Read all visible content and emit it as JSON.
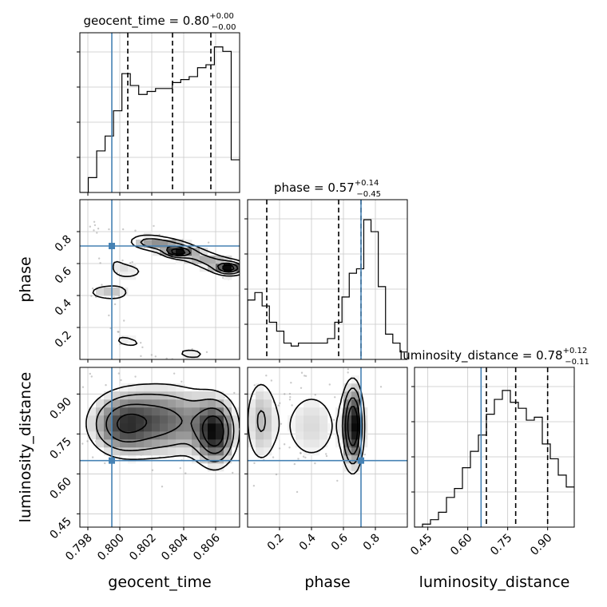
{
  "chart_data": {
    "type": "corner",
    "truth_color": "#4682b4",
    "parameters": [
      {
        "name": "geocent_time",
        "axis_label": "geocent_time",
        "range": [
          0.7975,
          0.8075
        ],
        "ticks": [
          "0.798",
          "0.800",
          "0.802",
          "0.804",
          "0.806"
        ],
        "tick_values": [
          0.798,
          0.8,
          0.802,
          0.804,
          0.806
        ],
        "truth": 0.7995,
        "title": {
          "label": "geocent_time = 0.80",
          "plus": "+0.00",
          "minus": "−0.00"
        },
        "quantiles": [
          0.8005,
          0.8033,
          0.8057
        ],
        "histogram": [
          0,
          0.1,
          0.28,
          0.38,
          0.55,
          0.8,
          0.72,
          0.66,
          0.68,
          0.7,
          0.7,
          0.74,
          0.76,
          0.78,
          0.84,
          0.86,
          0.98,
          0.95,
          0.22
        ]
      },
      {
        "name": "phase",
        "axis_label": "phase",
        "range": [
          0.0,
          1.0
        ],
        "ticks": [
          "0.2",
          "0.4",
          "0.6",
          "0.8"
        ],
        "tick_values": [
          0.2,
          0.4,
          0.6,
          0.8
        ],
        "truth": 0.71,
        "title": {
          "label": "phase = 0.57",
          "plus": "+0.14",
          "minus": "−0.45"
        },
        "quantiles": [
          0.12,
          0.57,
          0.71
        ],
        "histogram": [
          0.4,
          0.45,
          0.36,
          0.25,
          0.19,
          0.11,
          0.09,
          0.11,
          0.11,
          0.11,
          0.11,
          0.14,
          0.25,
          0.42,
          0.58,
          0.61,
          0.94,
          0.86,
          0.49,
          0.17,
          0.11,
          0.05
        ]
      },
      {
        "name": "luminosity_distance",
        "axis_label": "luminosity_distance",
        "range": [
          0.4,
          1.0
        ],
        "ticks": [
          "0.45",
          "0.60",
          "0.75",
          "0.90"
        ],
        "tick_values": [
          0.45,
          0.6,
          0.75,
          0.9
        ],
        "truth": 0.65,
        "title": {
          "label": "luminosity_distance = 0.78",
          "plus": "+0.12",
          "minus": "−0.11"
        },
        "quantiles": [
          0.67,
          0.78,
          0.9
        ],
        "histogram": [
          0,
          0.02,
          0.05,
          0.1,
          0.2,
          0.26,
          0.4,
          0.51,
          0.62,
          0.76,
          0.86,
          0.92,
          0.84,
          0.8,
          0.72,
          0.74,
          0.56,
          0.46,
          0.35,
          0.27
        ]
      }
    ]
  }
}
